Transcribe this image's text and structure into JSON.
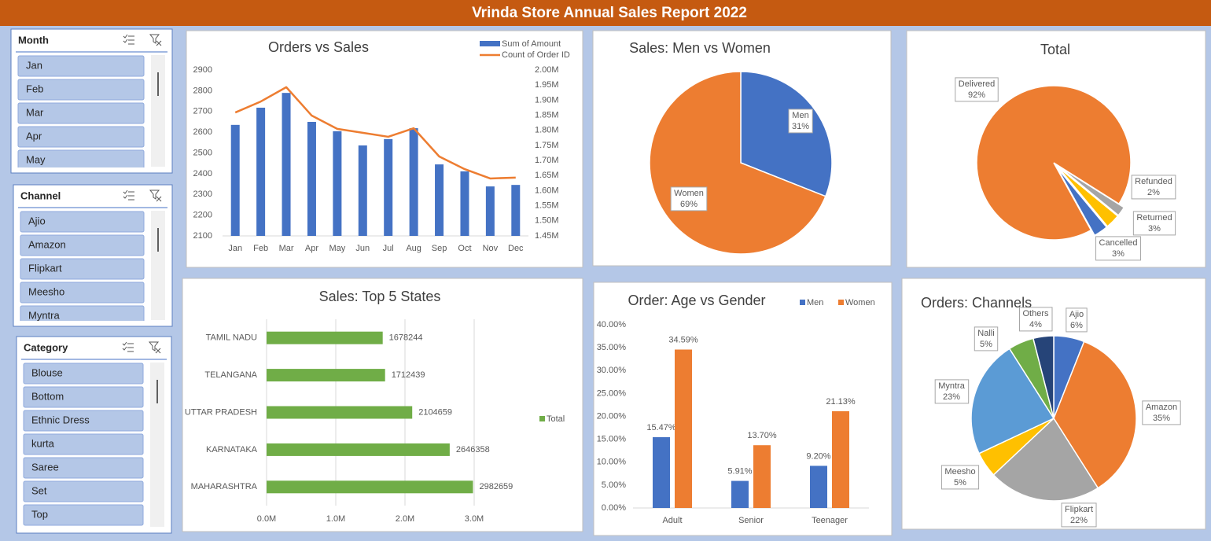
{
  "header": {
    "title": "Vrinda Store Annual Sales Report 2022"
  },
  "slicers": [
    {
      "title": "Month",
      "items": [
        "Jan",
        "Feb",
        "Mar",
        "Apr",
        "May"
      ]
    },
    {
      "title": "Channel",
      "items": [
        "Ajio",
        "Amazon",
        "Flipkart",
        "Meesho",
        "Myntra"
      ]
    },
    {
      "title": "Category",
      "items": [
        "Blouse",
        "Bottom",
        "Ethnic Dress",
        "kurta",
        "Saree",
        "Set",
        "Top"
      ]
    }
  ],
  "chart_data": [
    {
      "type": "combo",
      "title": "Orders vs Sales",
      "categories": [
        "Jan",
        "Feb",
        "Mar",
        "Apr",
        "May",
        "Jun",
        "Jul",
        "Aug",
        "Sep",
        "Oct",
        "Nov",
        "Dec"
      ],
      "series": [
        {
          "name": "Sum of Amount",
          "type": "bar",
          "axis": "y2",
          "color": "#4472c4",
          "values": [
            1818000,
            1875000,
            1924000,
            1828000,
            1797000,
            1750000,
            1771000,
            1807000,
            1687000,
            1664000,
            1614000,
            1619000
          ]
        },
        {
          "name": "Count of Order ID",
          "type": "line",
          "color": "#ed7d31",
          "values": [
            2695,
            2748,
            2817,
            2680,
            2616,
            2597,
            2578,
            2619,
            2483,
            2422,
            2377,
            2381
          ]
        }
      ],
      "ylim": [
        2100,
        2900
      ],
      "yticks": [
        2100,
        2200,
        2300,
        2400,
        2500,
        2600,
        2700,
        2800,
        2900
      ],
      "y2lim": [
        1450000,
        2000000
      ],
      "y2ticks": [
        {
          "value": 1450000,
          "label": "1.45M"
        },
        {
          "value": 1500000,
          "label": "1.50M"
        },
        {
          "value": 1550000,
          "label": "1.55M"
        },
        {
          "value": 1600000,
          "label": "1.60M"
        },
        {
          "value": 1650000,
          "label": "1.65M"
        },
        {
          "value": 1700000,
          "label": "1.70M"
        },
        {
          "value": 1750000,
          "label": "1.75M"
        },
        {
          "value": 1800000,
          "label": "1.80M"
        },
        {
          "value": 1850000,
          "label": "1.85M"
        },
        {
          "value": 1900000,
          "label": "1.90M"
        },
        {
          "value": 1950000,
          "label": "1.95M"
        },
        {
          "value": 2000000,
          "label": "2.00M"
        }
      ],
      "grid": false,
      "legend": "top-right"
    },
    {
      "type": "pie",
      "title": "Sales: Men vs Women",
      "categories": [
        "Men",
        "Women"
      ],
      "values": [
        31,
        69
      ],
      "value_labels": [
        "31%",
        "69%"
      ],
      "colors": [
        "#4472c4",
        "#ed7d31"
      ]
    },
    {
      "type": "pie",
      "title": "Total",
      "categories": [
        "Delivered",
        "Refunded",
        "Returned",
        "Cancelled"
      ],
      "values": [
        92,
        2,
        3,
        3
      ],
      "value_labels": [
        "92%",
        "2%",
        "3%",
        "3%"
      ],
      "colors": [
        "#ed7d31",
        "#a5a5a5",
        "#ffc000",
        "#4472c4"
      ]
    },
    {
      "type": "bar",
      "orientation": "horizontal",
      "title": "Sales: Top 5 States",
      "categories": [
        "TAMIL NADU",
        "TELANGANA",
        "UTTAR PRADESH",
        "KARNATAKA",
        "MAHARASHTRA"
      ],
      "series": [
        {
          "name": "Total",
          "color": "#70ad47",
          "values": [
            1678244,
            1712439,
            2104659,
            2646358,
            2982659
          ]
        }
      ],
      "xlim": [
        0,
        3500000
      ],
      "xticks": [
        {
          "value": 0,
          "label": "0.0M"
        },
        {
          "value": 1000000,
          "label": "1.0M"
        },
        {
          "value": 2000000,
          "label": "2.0M"
        },
        {
          "value": 3000000,
          "label": "3.0M"
        }
      ],
      "grid": true,
      "legend": "right"
    },
    {
      "type": "bar",
      "orientation": "vertical",
      "title": "Order: Age vs Gender",
      "categories": [
        "Adult",
        "Senior",
        "Teenager"
      ],
      "series": [
        {
          "name": "Men",
          "color": "#4472c4",
          "values": [
            15.47,
            5.91,
            9.2
          ],
          "value_labels": [
            "15.47%",
            "5.91%",
            "9.20%"
          ]
        },
        {
          "name": "Women",
          "color": "#ed7d31",
          "values": [
            34.59,
            13.7,
            21.13
          ],
          "value_labels": [
            "34.59%",
            "13.70%",
            "21.13%"
          ]
        }
      ],
      "ylim": [
        0,
        40
      ],
      "yticks": [
        {
          "value": 0,
          "label": "0.00%"
        },
        {
          "value": 5,
          "label": "5.00%"
        },
        {
          "value": 10,
          "label": "10.00%"
        },
        {
          "value": 15,
          "label": "15.00%"
        },
        {
          "value": 20,
          "label": "20.00%"
        },
        {
          "value": 25,
          "label": "25.00%"
        },
        {
          "value": 30,
          "label": "30.00%"
        },
        {
          "value": 35,
          "label": "35.00%"
        },
        {
          "value": 40,
          "label": "40.00%"
        }
      ],
      "grid": false,
      "legend": "top-right"
    },
    {
      "type": "pie",
      "title": "Orders: Channels",
      "categories": [
        "Ajio",
        "Amazon",
        "Flipkart",
        "Meesho",
        "Myntra",
        "Nalli",
        "Others"
      ],
      "values": [
        6,
        35,
        22,
        5,
        23,
        5,
        4
      ],
      "value_labels": [
        "6%",
        "35%",
        "22%",
        "5%",
        "23%",
        "5%",
        "4%"
      ],
      "colors": [
        "#4472c4",
        "#ed7d31",
        "#a5a5a5",
        "#ffc000",
        "#5b9bd5",
        "#70ad47",
        "#264478"
      ]
    }
  ]
}
